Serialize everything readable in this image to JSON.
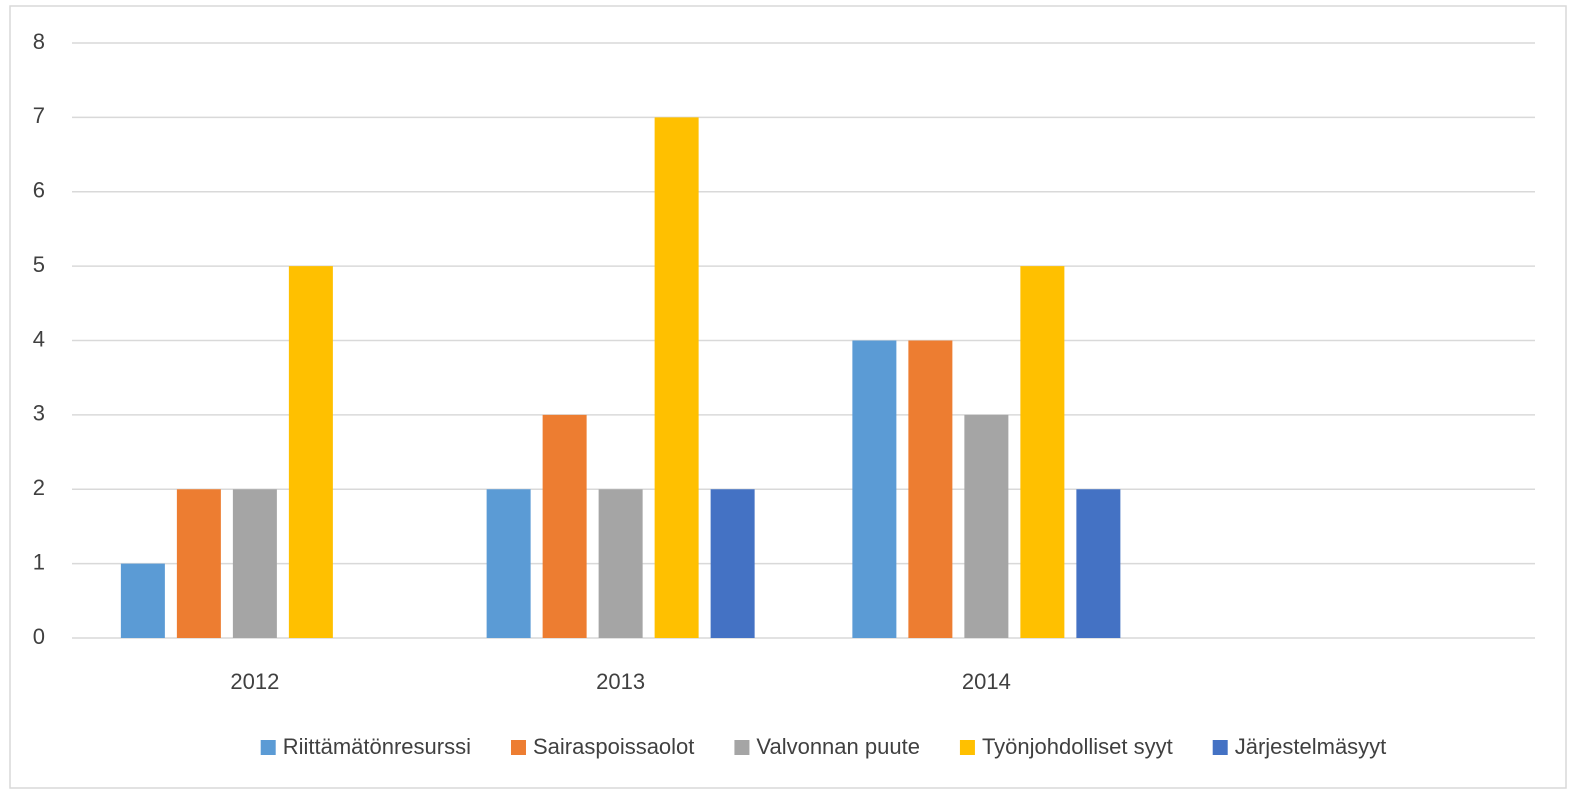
{
  "chart_data": {
    "type": "bar",
    "categories": [
      "2012",
      "2013",
      "2014",
      null
    ],
    "series": [
      {
        "name": "Riittämätönresurssi",
        "color": "#5b9bd5",
        "values": [
          1,
          2,
          4,
          null
        ]
      },
      {
        "name": "Sairaspoissaolot",
        "color": "#ed7d31",
        "values": [
          2,
          3,
          4,
          null
        ]
      },
      {
        "name": "Valvonnan puute",
        "color": "#a5a5a5",
        "values": [
          2,
          2,
          3,
          null
        ]
      },
      {
        "name": "Työnjohdolliset syyt",
        "color": "#ffc000",
        "values": [
          5,
          7,
          5,
          null
        ]
      },
      {
        "name": "Järjestelmäsyyt",
        "color": "#4472c4",
        "values": [
          null,
          2,
          2,
          null
        ]
      }
    ],
    "ylim": [
      0,
      8
    ],
    "yticks": [
      0,
      1,
      2,
      3,
      4,
      5,
      6,
      7,
      8
    ],
    "grid": true,
    "legend": "bottom"
  }
}
